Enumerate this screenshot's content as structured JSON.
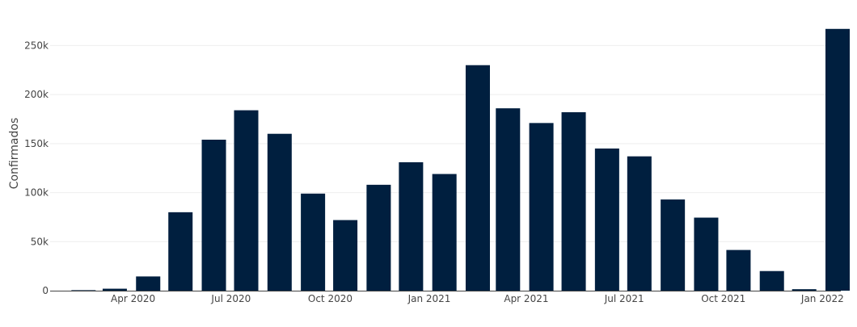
{
  "colors": {
    "bar": "#001f3f",
    "grid": "#eeeeee",
    "axis": "#444444",
    "text": "#444444"
  },
  "chart_data": {
    "type": "bar",
    "title": "",
    "xlabel": "",
    "ylabel": "Confirmados",
    "grid": "horizontal",
    "ylim": [
      0,
      280000
    ],
    "x_axis": {
      "ticks": [
        {
          "label": "Apr 2020",
          "date": "2020-04-01"
        },
        {
          "label": "Jul 2020",
          "date": "2020-07-01"
        },
        {
          "label": "Oct 2020",
          "date": "2020-10-01"
        },
        {
          "label": "Jan 2021",
          "date": "2021-01-01"
        },
        {
          "label": "Apr 2021",
          "date": "2021-04-01"
        },
        {
          "label": "Jul 2021",
          "date": "2021-07-01"
        },
        {
          "label": "Oct 2021",
          "date": "2021-10-01"
        },
        {
          "label": "Jan 2022",
          "date": "2022-01-01"
        }
      ]
    },
    "y_axis": {
      "ticks": [
        {
          "label": "0",
          "value": 0
        },
        {
          "label": "50k",
          "value": 50000
        },
        {
          "label": "100k",
          "value": 100000
        },
        {
          "label": "150k",
          "value": 150000
        },
        {
          "label": "200k",
          "value": 200000
        },
        {
          "label": "250k",
          "value": 250000
        }
      ]
    },
    "categories": [
      "2020-02",
      "2020-03",
      "2020-04",
      "2020-05",
      "2020-06",
      "2020-07",
      "2020-08",
      "2020-09",
      "2020-10",
      "2020-11",
      "2020-12",
      "2021-01",
      "2021-02",
      "2021-03",
      "2021-04",
      "2021-05",
      "2021-06",
      "2021-07",
      "2021-08",
      "2021-09",
      "2021-10",
      "2021-11",
      "2021-12",
      "2022-01"
    ],
    "values": [
      500,
      2000,
      14500,
      80000,
      154000,
      184000,
      160000,
      99000,
      72000,
      108000,
      131000,
      119000,
      230000,
      186000,
      171000,
      182000,
      145000,
      137000,
      93000,
      74500,
      41500,
      20000,
      1500,
      267000
    ]
  }
}
